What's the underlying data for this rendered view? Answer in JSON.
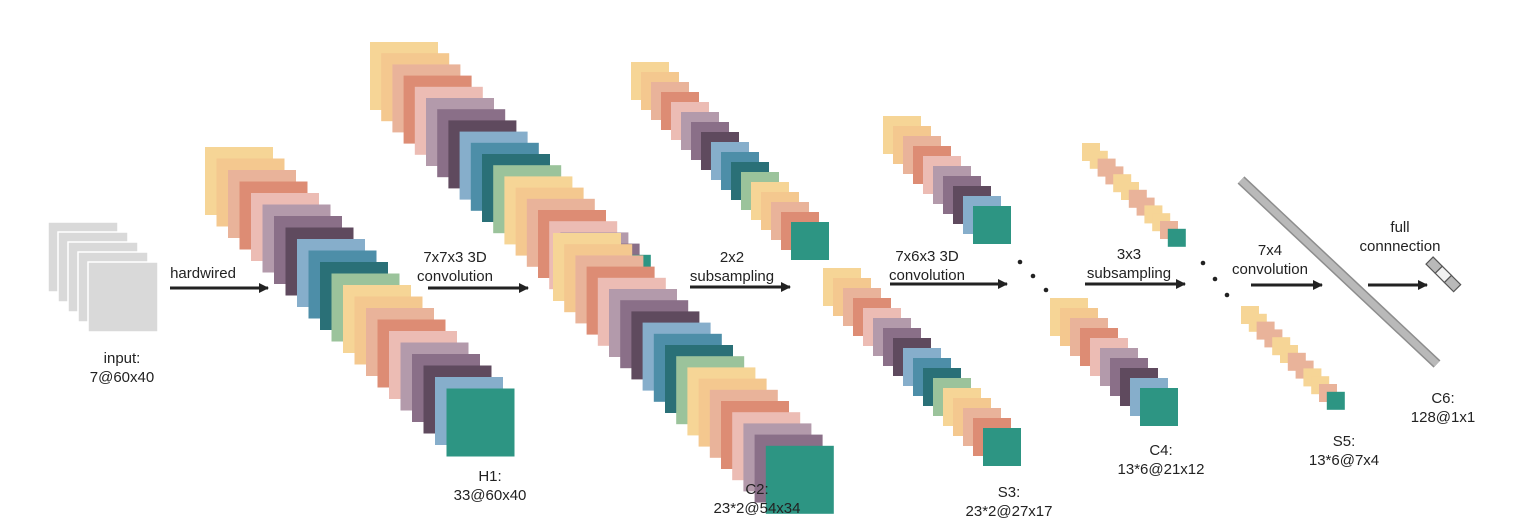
{
  "palette": {
    "input": "#d9d9d9",
    "cycle": [
      "#f6d596",
      "#f4c88f",
      "#e9b39a",
      "#dd8c74",
      "#ecbcb4",
      "#b39aab",
      "#8a6f88",
      "#5f4a5e",
      "#86aecb",
      "#4d8ea8",
      "#2a7077",
      "#9bc39b",
      "#2d9583"
    ],
    "pair": [
      "#f6d596",
      "#e9b39a"
    ],
    "front": "#2d9583",
    "arrow": "#222222",
    "dots": "#222222",
    "bar": "#b9b9b9",
    "bar_stroke": "#8d8d8d",
    "output_cells": [
      "#b9b9b9",
      "#f1f1f1",
      "#b9b9b9"
    ]
  },
  "layers": [
    {
      "id": "input",
      "name": "input:",
      "dims": "7@60x40"
    },
    {
      "id": "h1",
      "name": "H1:",
      "dims": "33@60x40"
    },
    {
      "id": "c2",
      "name": "C2:",
      "dims": "23*2@54x34"
    },
    {
      "id": "s3",
      "name": "S3:",
      "dims": "23*2@27x17"
    },
    {
      "id": "c4",
      "name": "C4:",
      "dims": "13*6@21x12"
    },
    {
      "id": "s5",
      "name": "S5:",
      "dims": "13*6@7x4"
    },
    {
      "id": "c6",
      "name": "C6:",
      "dims": "128@1x1"
    }
  ],
  "operations": [
    {
      "id": "hardwired",
      "line1": "hardwired",
      "line2": ""
    },
    {
      "id": "conv1",
      "line1": "7x7x3 3D",
      "line2": "convolution"
    },
    {
      "id": "sub1",
      "line1": "2x2",
      "line2": "subsampling"
    },
    {
      "id": "conv2",
      "line1": "7x6x3 3D",
      "line2": "convolution"
    },
    {
      "id": "sub2",
      "line1": "3x3",
      "line2": "subsampling"
    },
    {
      "id": "conv3",
      "line1": "7x4",
      "line2": "convolution"
    },
    {
      "id": "full",
      "line1": "full",
      "line2": "connnection"
    }
  ]
}
